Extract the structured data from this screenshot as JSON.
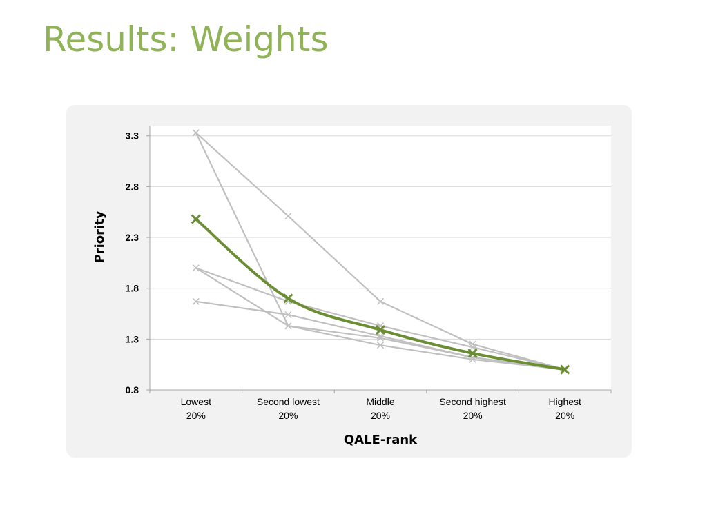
{
  "slide": {
    "title": "Results: Weights"
  },
  "colors": {
    "title": "#8fb356",
    "highlight_series": "#6b8e35",
    "other_series": "#c0c0c0",
    "panel_background": "#f2f2f2",
    "grid": "#d9d9d9"
  },
  "chart_data": {
    "type": "line",
    "title": "",
    "xlabel": "QALE-rank",
    "ylabel": "Priority",
    "ylim": [
      0.8,
      3.4
    ],
    "yticks": [
      "0.8",
      "1.3",
      "1.8",
      "2.3",
      "2.8",
      "3.3"
    ],
    "grid": true,
    "legend": "none",
    "categories": [
      [
        "Lowest",
        "20%"
      ],
      [
        "Second lowest",
        "20%"
      ],
      [
        "Middle",
        "20%"
      ],
      [
        "Second highest",
        "20%"
      ],
      [
        "Highest",
        "20%"
      ]
    ],
    "series": [
      {
        "values": [
          3.33,
          1.43,
          1.31,
          1.12,
          1.0
        ],
        "highlight": false
      },
      {
        "values": [
          3.33,
          2.51,
          1.67,
          1.25,
          1.0
        ],
        "highlight": false
      },
      {
        "values": [
          2.0,
          1.43,
          1.24,
          1.1,
          1.0
        ],
        "highlight": false
      },
      {
        "values": [
          2.0,
          1.67,
          1.43,
          1.22,
          1.0
        ],
        "highlight": false
      },
      {
        "values": [
          1.67,
          1.54,
          1.33,
          1.12,
          1.0
        ],
        "highlight": false
      },
      {
        "values": [
          2.48,
          1.7,
          1.39,
          1.16,
          1.0
        ],
        "highlight": true
      }
    ]
  }
}
